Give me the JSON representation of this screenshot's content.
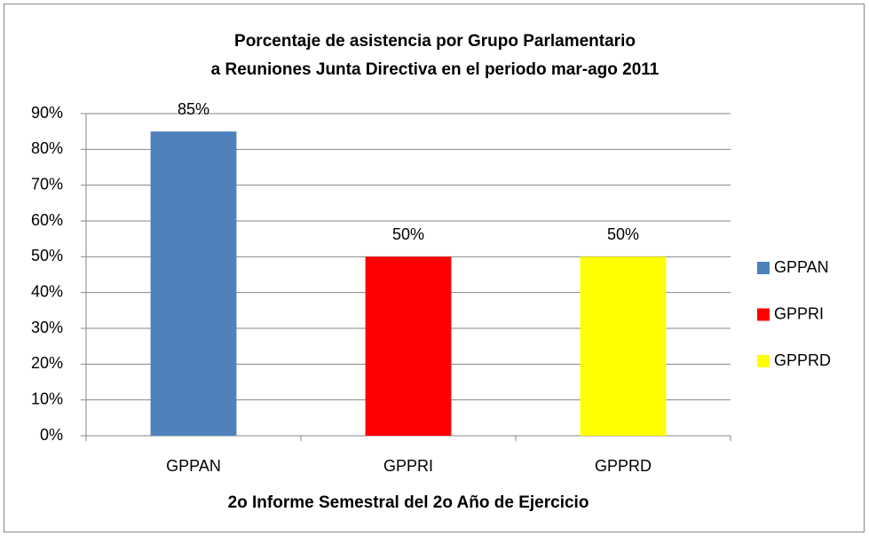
{
  "chart_data": {
    "type": "bar",
    "title": [
      "Porcentaje de asistencia por Grupo Parlamentario",
      "a Reuniones Junta Directiva en el periodo mar-ago 2011"
    ],
    "x_label": "2o Informe Semestral del 2o Año de Ejercicio",
    "categories": [
      "GPPAN",
      "GPPRI",
      "GPPRD"
    ],
    "values": [
      85,
      50,
      50
    ],
    "value_labels": [
      "85%",
      "50%",
      "50%"
    ],
    "colors": [
      "#4f81bd",
      "#ff0000",
      "#ffff00"
    ],
    "ylim": [
      0,
      90
    ],
    "yticks": [
      {
        "value": 0,
        "label": "0%"
      },
      {
        "value": 10,
        "label": "10%"
      },
      {
        "value": 20,
        "label": "20%"
      },
      {
        "value": 30,
        "label": "30%"
      },
      {
        "value": 40,
        "label": "40%"
      },
      {
        "value": 50,
        "label": "50%"
      },
      {
        "value": 60,
        "label": "60%"
      },
      {
        "value": 70,
        "label": "70%"
      },
      {
        "value": 80,
        "label": "80%"
      },
      {
        "value": 90,
        "label": "90%"
      }
    ],
    "grid": true,
    "legend": "right"
  }
}
